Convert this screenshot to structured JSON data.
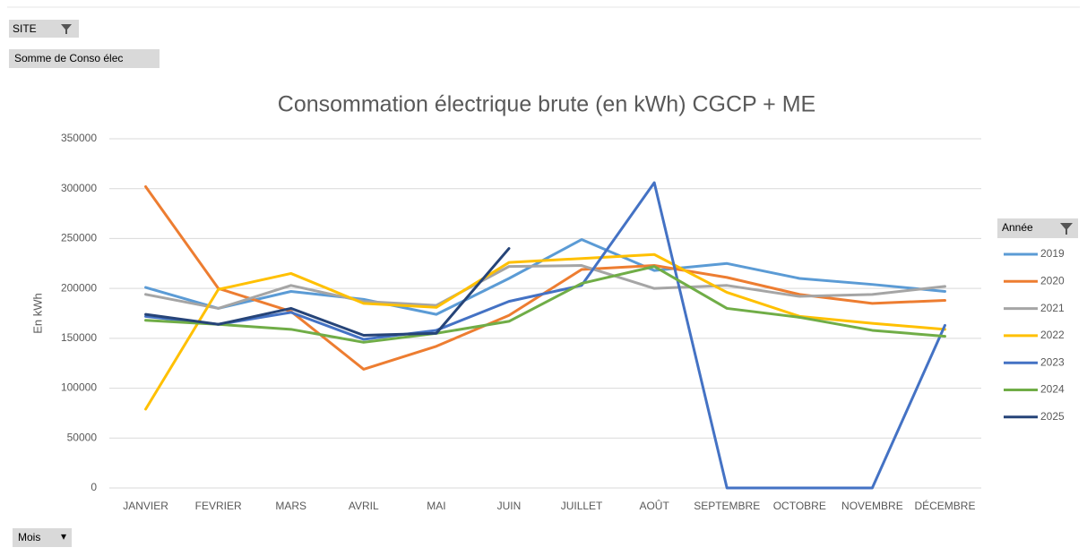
{
  "pivot": {
    "filter_field": "SITE",
    "value_field": "Somme de Conso élec",
    "row_field": "Mois"
  },
  "chart_data": {
    "type": "line",
    "title": "Consommation électrique brute (en kWh) CGCP + ME",
    "y_label": "En kWh",
    "legend_title": "Année",
    "legend_position": "right",
    "grid": true,
    "categories": [
      "JANVIER",
      "FEVRIER",
      "MARS",
      "AVRIL",
      "MAI",
      "JUIN",
      "JUILLET",
      "AOÛT",
      "SEPTEMBRE",
      "OCTOBRE",
      "NOVEMBRE",
      "DÉCEMBRE"
    ],
    "ylim": [
      0,
      350000
    ],
    "yticks": [
      0,
      50000,
      100000,
      150000,
      200000,
      250000,
      300000,
      350000
    ],
    "series": [
      {
        "name": "2019",
        "color": "#5b9bd5",
        "values": [
          201000,
          180000,
          197000,
          189000,
          174000,
          210000,
          249000,
          218000,
          225000,
          210000,
          204000,
          197000
        ]
      },
      {
        "name": "2020",
        "color": "#ed7d31",
        "values": [
          302000,
          200000,
          177000,
          119000,
          142000,
          173000,
          219000,
          223000,
          211000,
          194000,
          185000,
          188000
        ]
      },
      {
        "name": "2021",
        "color": "#a5a5a5",
        "values": [
          194000,
          180000,
          203000,
          187000,
          183000,
          222000,
          223000,
          200000,
          203000,
          192000,
          194000,
          202000
        ]
      },
      {
        "name": "2022",
        "color": "#ffc000",
        "values": [
          79000,
          199000,
          215000,
          185000,
          181000,
          226000,
          230000,
          234000,
          196000,
          172000,
          165000,
          159000
        ]
      },
      {
        "name": "2023",
        "color": "#4472c4",
        "values": [
          172000,
          164000,
          176000,
          149000,
          158000,
          187000,
          203000,
          306000,
          0,
          0,
          0,
          163000
        ]
      },
      {
        "name": "2024",
        "color": "#70ad47",
        "values": [
          168000,
          164000,
          159000,
          146000,
          155000,
          167000,
          205000,
          222000,
          180000,
          171000,
          158000,
          152000
        ]
      },
      {
        "name": "2025",
        "color": "#264478",
        "values": [
          174000,
          164000,
          180000,
          153000,
          155000,
          240000,
          null,
          null,
          null,
          null,
          null,
          null
        ]
      }
    ]
  }
}
